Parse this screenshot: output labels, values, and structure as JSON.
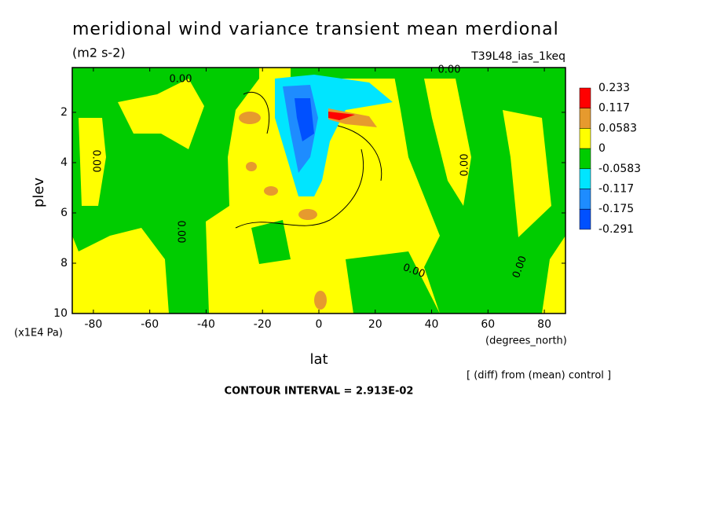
{
  "chart_data": {
    "type": "contour",
    "title": "meridional wind variance transient mean merdional",
    "subtitle": "(m2 s-2)",
    "run_label": "T39L48_ias_1keq",
    "x_label": "lat",
    "x_unit": "(degrees_north)",
    "y_label": "plev",
    "y_unit": "(x1E4 Pa)",
    "note": "[ (diff) from (mean) control ]",
    "contour_interval": "CONTOUR INTERVAL = 2.913E-02",
    "xlim": [
      -87.5,
      87.5
    ],
    "xticks": [
      -80,
      -60,
      -40,
      -20,
      0,
      20,
      40,
      60,
      80
    ],
    "ylim": [
      10,
      0.22
    ],
    "yticks": [
      2,
      4,
      6,
      8,
      10
    ],
    "levels": [
      0.233,
      0.117,
      0.0583,
      0,
      -0.0583,
      -0.117,
      -0.175,
      -0.291
    ],
    "colors": [
      "#ff0000",
      "#e69a2e",
      "#ffff00",
      "#00cc00",
      "#00e5ff",
      "#1e8cff",
      "#0050ff"
    ],
    "contour_labels": [
      "0.00",
      "0.00",
      "0.00",
      "0.00",
      "0.00",
      "0.00",
      "0.00"
    ]
  }
}
